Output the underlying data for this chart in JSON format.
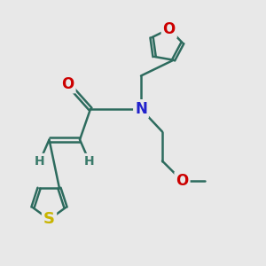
{
  "bg_color": "#e8e8e8",
  "bond_color": "#2d6b5e",
  "bond_width": 1.8,
  "atoms": {
    "S": {
      "color": "#c8b400",
      "fontsize": 13
    },
    "O": {
      "color": "#cc0000",
      "fontsize": 12
    },
    "N": {
      "color": "#2222cc",
      "fontsize": 12
    },
    "H": {
      "color": "#3a7a6a",
      "fontsize": 10
    }
  },
  "figsize": [
    3.0,
    3.0
  ],
  "dpi": 100
}
